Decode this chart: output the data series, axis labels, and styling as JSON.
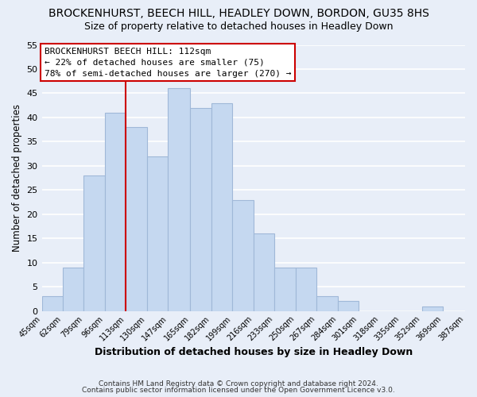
{
  "title": "BROCKENHURST, BEECH HILL, HEADLEY DOWN, BORDON, GU35 8HS",
  "subtitle": "Size of property relative to detached houses in Headley Down",
  "xlabel": "Distribution of detached houses by size in Headley Down",
  "ylabel": "Number of detached properties",
  "bar_edges": [
    45,
    62,
    79,
    96,
    113,
    130,
    147,
    165,
    182,
    199,
    216,
    233,
    250,
    267,
    284,
    301,
    318,
    335,
    352,
    369,
    387
  ],
  "bar_heights": [
    3,
    9,
    28,
    41,
    38,
    32,
    46,
    42,
    43,
    23,
    16,
    9,
    9,
    3,
    2,
    0,
    0,
    0,
    1,
    0
  ],
  "bar_color": "#c5d8f0",
  "bar_edge_color": "#a0b8d8",
  "tick_labels": [
    "45sqm",
    "62sqm",
    "79sqm",
    "96sqm",
    "113sqm",
    "130sqm",
    "147sqm",
    "165sqm",
    "182sqm",
    "199sqm",
    "216sqm",
    "233sqm",
    "250sqm",
    "267sqm",
    "284sqm",
    "301sqm",
    "318sqm",
    "335sqm",
    "352sqm",
    "369sqm",
    "387sqm"
  ],
  "ylim": [
    0,
    55
  ],
  "yticks": [
    0,
    5,
    10,
    15,
    20,
    25,
    30,
    35,
    40,
    45,
    50,
    55
  ],
  "vline_x": 113,
  "vline_color": "#cc0000",
  "annotation_title": "BROCKENHURST BEECH HILL: 112sqm",
  "annotation_line1": "← 22% of detached houses are smaller (75)",
  "annotation_line2": "78% of semi-detached houses are larger (270) →",
  "annotation_box_color": "#ffffff",
  "annotation_box_edge_color": "#cc0000",
  "footer1": "Contains HM Land Registry data © Crown copyright and database right 2024.",
  "footer2": "Contains public sector information licensed under the Open Government Licence v3.0.",
  "bg_color": "#e8eef8",
  "grid_color": "#ffffff",
  "title_fontsize": 10,
  "subtitle_fontsize": 9,
  "xlabel_fontsize": 9,
  "ylabel_fontsize": 8.5
}
